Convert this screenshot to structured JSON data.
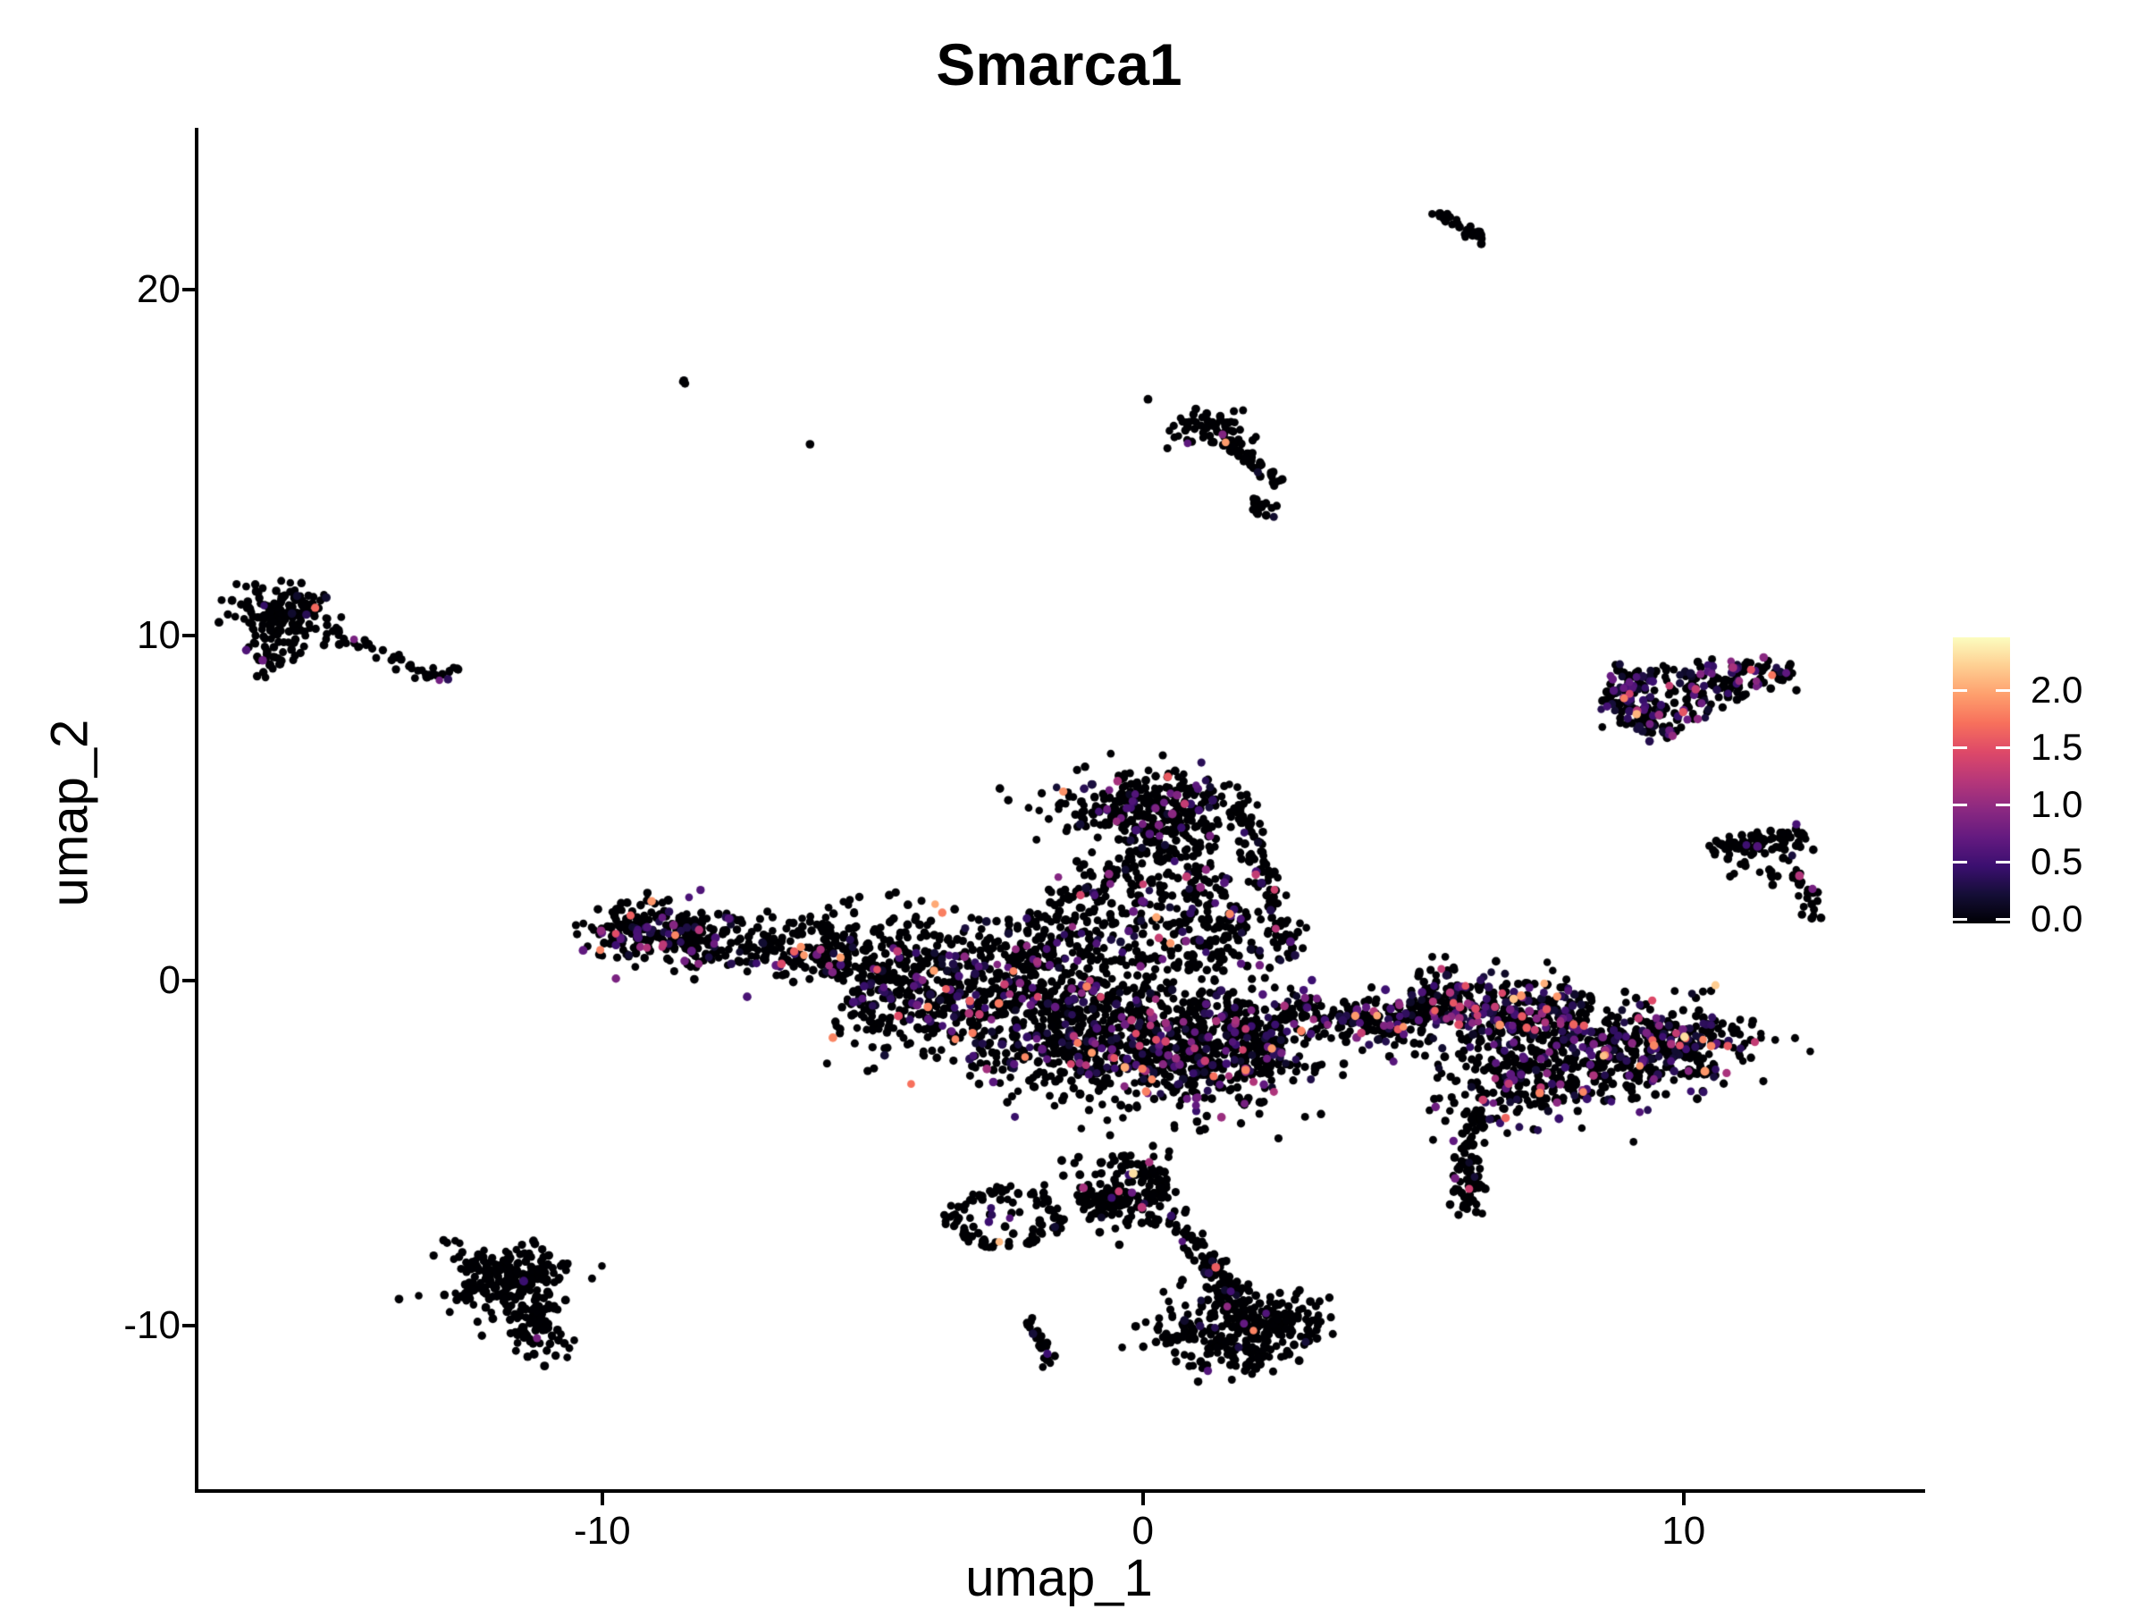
{
  "title": "Smarca1",
  "axes": {
    "x": {
      "label": "umap_1",
      "domain": [
        -17.5,
        14.4
      ],
      "ticks": [
        {
          "value": -10,
          "label": "-10"
        },
        {
          "value": 0,
          "label": "0"
        },
        {
          "value": 10,
          "label": "10"
        }
      ]
    },
    "y": {
      "label": "umap_2",
      "domain": [
        -14.8,
        24.7
      ],
      "ticks": [
        {
          "value": 20,
          "label": "20"
        },
        {
          "value": 10,
          "label": "10"
        },
        {
          "value": 0,
          "label": "0"
        },
        {
          "value": -10,
          "label": "-10"
        }
      ]
    }
  },
  "legend": {
    "min": 0.0,
    "max": 2.46,
    "colormap": "magma",
    "ticks": [
      {
        "value": 2.0,
        "label": "2.0"
      },
      {
        "value": 1.5,
        "label": "1.5"
      },
      {
        "value": 1.0,
        "label": "1.0"
      },
      {
        "value": 0.5,
        "label": "0.5"
      },
      {
        "value": 0.0,
        "label": "0.0"
      }
    ]
  },
  "chart_data": {
    "type": "scatter",
    "title": "Smarca1",
    "xlabel": "umap_1",
    "ylabel": "umap_2",
    "xlim": [
      -17.5,
      14.4
    ],
    "ylim": [
      -14.8,
      24.7
    ],
    "color_variable": "expression",
    "color_range": [
      0.0,
      2.46
    ],
    "point_radius_px": 4.6,
    "colormap_stops": [
      [
        0.0,
        "#000004"
      ],
      [
        0.1,
        "#140e36"
      ],
      [
        0.2,
        "#3b0f70"
      ],
      [
        0.3,
        "#641a80"
      ],
      [
        0.4,
        "#8c2981"
      ],
      [
        0.5,
        "#b73779"
      ],
      [
        0.6,
        "#de4968"
      ],
      [
        0.7,
        "#f7705c"
      ],
      [
        0.8,
        "#fe9f6d"
      ],
      [
        0.9,
        "#fecf92"
      ],
      [
        1.0,
        "#fcfdbf"
      ]
    ],
    "clusters": [
      {
        "name": "streak-top-right",
        "type": "band",
        "x1": 5.48,
        "y1": 22.25,
        "x2": 6.28,
        "y2": 21.42,
        "w": 0.07,
        "n": 30,
        "p0": 0.99,
        "scale": 0.3
      },
      {
        "name": "speck-pair",
        "type": "gauss",
        "cx": -8.5,
        "cy": 17.35,
        "sx": 0.07,
        "sy": 0.05,
        "n": 3,
        "p0": 1.0,
        "scale": 0.3
      },
      {
        "name": "speck",
        "type": "gauss",
        "cx": -6.17,
        "cy": 15.55,
        "sx": 0.03,
        "sy": 0.03,
        "n": 1,
        "p0": 1.0,
        "scale": 0.3
      },
      {
        "name": "top-mid-blob",
        "type": "gauss",
        "cx": 1.25,
        "cy": 16.05,
        "sx": 0.36,
        "sy": 0.26,
        "n": 60,
        "p0": 0.96,
        "scale": 0.4
      },
      {
        "name": "top-mid-chain",
        "type": "band",
        "x1": 1.55,
        "y1": 15.6,
        "x2": 2.6,
        "y2": 14.35,
        "w": 0.09,
        "n": 42,
        "p0": 0.96,
        "scale": 0.4
      },
      {
        "name": "top-mid-hook",
        "type": "gauss",
        "cx": 2.2,
        "cy": 13.72,
        "sx": 0.15,
        "sy": 0.17,
        "n": 15,
        "p0": 0.96,
        "scale": 0.4
      },
      {
        "name": "left-main",
        "type": "gauss",
        "cx": -15.85,
        "cy": 10.7,
        "sx": 0.5,
        "sy": 0.38,
        "n": 130,
        "p0": 0.96,
        "scale": 0.45
      },
      {
        "name": "left-sub",
        "type": "gauss",
        "cx": -16.1,
        "cy": 9.6,
        "sx": 0.27,
        "sy": 0.45,
        "n": 48,
        "p0": 0.96,
        "scale": 0.45
      },
      {
        "name": "left-chain",
        "type": "band",
        "x1": -15.1,
        "y1": 10.15,
        "x2": -13.3,
        "y2": 8.95,
        "w": 0.12,
        "n": 28,
        "p0": 0.96,
        "scale": 0.45
      },
      {
        "name": "left-tip",
        "type": "gauss",
        "cx": -13.15,
        "cy": 8.85,
        "sx": 0.18,
        "sy": 0.12,
        "n": 12,
        "p0": 0.96,
        "scale": 0.45
      },
      {
        "name": "left-pair",
        "type": "gauss",
        "cx": -12.72,
        "cy": 9.0,
        "sx": 0.1,
        "sy": 0.05,
        "n": 5,
        "p0": 0.96,
        "scale": 0.45
      },
      {
        "name": "tri-top",
        "type": "band",
        "x1": 8.6,
        "y1": 8.62,
        "x2": 12.0,
        "y2": 9.0,
        "w": 0.24,
        "n": 135,
        "p0": 0.68,
        "scale": 0.5
      },
      {
        "name": "tri-left",
        "type": "band",
        "x1": 8.55,
        "y1": 8.35,
        "x2": 9.82,
        "y2": 7.05,
        "w": 0.24,
        "n": 95,
        "p0": 0.68,
        "scale": 0.5
      },
      {
        "name": "tri-fill",
        "type": "tri",
        "ax": 8.8,
        "ay": 8.45,
        "bx": 11.8,
        "by": 8.85,
        "cx2": 9.95,
        "cy2": 7.1,
        "n": 70,
        "p0": 0.8,
        "scale": 0.5
      },
      {
        "name": "arrow-band",
        "type": "band",
        "x1": 10.52,
        "y1": 3.82,
        "x2": 12.35,
        "y2": 4.22,
        "w": 0.17,
        "n": 80,
        "p0": 0.97,
        "scale": 0.4
      },
      {
        "name": "arrow-scatter",
        "type": "gauss",
        "cx": 11.3,
        "cy": 3.35,
        "sx": 0.45,
        "sy": 0.28,
        "n": 24,
        "p0": 0.97,
        "scale": 0.4
      },
      {
        "name": "arrow-hook1",
        "type": "band",
        "x1": 11.95,
        "y1": 3.15,
        "x2": 12.32,
        "y2": 2.55,
        "w": 0.1,
        "n": 12,
        "p0": 0.97,
        "scale": 0.4
      },
      {
        "name": "arrow-hook2",
        "type": "band",
        "x1": 12.32,
        "y1": 2.55,
        "x2": 12.38,
        "y2": 1.7,
        "w": 0.1,
        "n": 14,
        "p0": 0.97,
        "scale": 0.4
      },
      {
        "name": "arm-tip",
        "type": "gauss",
        "cx": -9.3,
        "cy": 1.55,
        "sx": 0.48,
        "sy": 0.5,
        "n": 170,
        "p0": 0.8,
        "scale": 0.5
      },
      {
        "name": "arm-band",
        "type": "band",
        "x1": -8.7,
        "y1": 1.3,
        "x2": -5.3,
        "y2": 0.7,
        "w": 0.45,
        "n": 270,
        "p0": 0.86,
        "scale": 0.5
      },
      {
        "name": "arm-bridge",
        "type": "gauss",
        "cx": -4.9,
        "cy": 1.5,
        "sx": 0.9,
        "sy": 0.5,
        "n": 50,
        "p0": 0.9,
        "scale": 0.5
      },
      {
        "name": "main-band",
        "type": "band",
        "x1": -5.3,
        "y1": 0.1,
        "x2": -0.2,
        "y2": -1.35,
        "w": 0.95,
        "n": 900,
        "p0": 0.83,
        "scale": 0.5
      },
      {
        "name": "main-band-2",
        "type": "band",
        "x1": -0.2,
        "y1": -1.35,
        "x2": 2.6,
        "y2": -1.85,
        "w": 0.8,
        "n": 460,
        "p0": 0.8,
        "scale": 0.5
      },
      {
        "name": "main-bulge",
        "type": "gauss",
        "cx": 0.2,
        "cy": -2.45,
        "sx": 1.6,
        "sy": 0.55,
        "n": 300,
        "p0": 0.8,
        "scale": 0.5
      },
      {
        "name": "upper-tri",
        "type": "tri",
        "ax": -2.3,
        "ay": 0.35,
        "bx": 2.4,
        "by": 0.25,
        "cx2": 0.9,
        "cy2": 5.55,
        "n": 430,
        "p0": 0.85,
        "scale": 0.5
      },
      {
        "name": "upper-cap",
        "type": "gauss",
        "cx": 0.15,
        "cy": 5.0,
        "sx": 0.85,
        "sy": 0.55,
        "n": 300,
        "p0": 0.86,
        "scale": 0.5
      },
      {
        "name": "upper-right-edge",
        "type": "band",
        "x1": 1.75,
        "y1": 5.2,
        "x2": 2.75,
        "y2": 0.6,
        "w": 0.16,
        "n": 115,
        "p0": 0.86,
        "scale": 0.5
      },
      {
        "name": "upper-left-edge",
        "type": "band",
        "x1": -2.35,
        "y1": 0.6,
        "x2": -0.7,
        "y2": 3.4,
        "w": 0.3,
        "n": 85,
        "p0": 0.88,
        "scale": 0.5
      },
      {
        "name": "connector",
        "type": "band",
        "x1": 2.6,
        "y1": -0.95,
        "x2": 4.85,
        "y2": -1.2,
        "w": 0.33,
        "n": 175,
        "p0": 0.78,
        "scale": 0.52
      },
      {
        "name": "below-scatter",
        "type": "gauss",
        "cx": 0.5,
        "cy": -3.6,
        "sx": 1.5,
        "sy": 0.5,
        "n": 26,
        "p0": 0.93,
        "scale": 0.4
      },
      {
        "name": "below-scatter2",
        "type": "gauss",
        "cx": 0.0,
        "cy": -4.4,
        "sx": 1.1,
        "sy": 0.4,
        "n": 10,
        "p0": 0.95,
        "scale": 0.4
      },
      {
        "name": "rm-top",
        "type": "band",
        "x1": 4.9,
        "y1": -0.75,
        "x2": 8.2,
        "y2": -1.1,
        "w": 0.55,
        "n": 430,
        "p0": 0.72,
        "scale": 0.52
      },
      {
        "name": "rm-right",
        "type": "gauss",
        "cx": 9.6,
        "cy": -1.85,
        "sx": 0.85,
        "sy": 0.6,
        "n": 310,
        "p0": 0.72,
        "scale": 0.52
      },
      {
        "name": "rm-mid",
        "type": "gauss",
        "cx": 7.3,
        "cy": -3.05,
        "sx": 0.9,
        "sy": 0.55,
        "n": 200,
        "p0": 0.8,
        "scale": 0.5
      },
      {
        "name": "rm-bridge",
        "type": "gauss",
        "cx": 8.3,
        "cy": -2.2,
        "sx": 1.0,
        "sy": 0.55,
        "n": 150,
        "p0": 0.75,
        "scale": 0.5
      },
      {
        "name": "rm-tail",
        "type": "band",
        "x1": 6.15,
        "y1": -3.75,
        "x2": 5.95,
        "y2": -6.8,
        "w": 0.14,
        "n": 95,
        "p0": 0.93,
        "scale": 0.4
      },
      {
        "name": "bottom-left-main",
        "type": "gauss",
        "cx": -11.8,
        "cy": -8.6,
        "sx": 0.58,
        "sy": 0.52,
        "n": 210,
        "p0": 0.985,
        "scale": 0.5
      },
      {
        "name": "bottom-left-ext",
        "type": "gauss",
        "cx": -11.2,
        "cy": -9.9,
        "sx": 0.35,
        "sy": 0.5,
        "n": 95,
        "p0": 0.985,
        "scale": 0.5
      },
      {
        "name": "ring",
        "type": "ring",
        "cx": -2.55,
        "cy": -6.9,
        "rx": 0.95,
        "ry": 0.8,
        "w": 0.09,
        "n": 92,
        "p0": 0.97,
        "scale": 0.4
      },
      {
        "name": "ring-inner",
        "type": "gauss",
        "cx": -2.5,
        "cy": -6.9,
        "sx": 0.45,
        "sy": 0.35,
        "n": 22,
        "p0": 0.85,
        "scale": 0.45
      },
      {
        "name": "ring-right-blob",
        "type": "band",
        "x1": -1.15,
        "y1": -6.6,
        "x2": 0.55,
        "y2": -5.95,
        "w": 0.38,
        "n": 160,
        "p0": 0.94,
        "scale": 0.4
      },
      {
        "name": "ring-upper-scatter",
        "type": "gauss",
        "cx": -0.55,
        "cy": -5.3,
        "sx": 0.45,
        "sy": 0.25,
        "n": 35,
        "p0": 0.94,
        "scale": 0.4
      },
      {
        "name": "chain-down",
        "type": "band",
        "x1": 0.35,
        "y1": -6.75,
        "x2": 1.4,
        "y2": -8.35,
        "w": 0.15,
        "n": 55,
        "p0": 0.95,
        "scale": 0.4
      },
      {
        "name": "bottom-center-neck",
        "type": "band",
        "x1": 1.4,
        "y1": -8.45,
        "x2": 1.6,
        "y2": -9.5,
        "w": 0.2,
        "n": 55,
        "p0": 0.95,
        "scale": 0.4
      },
      {
        "name": "bottom-center-main",
        "type": "gauss",
        "cx": 1.65,
        "cy": -10.2,
        "sx": 0.68,
        "sy": 0.55,
        "n": 270,
        "p0": 0.96,
        "scale": 0.45
      },
      {
        "name": "bottom-center-right",
        "type": "gauss",
        "cx": 2.6,
        "cy": -9.85,
        "sx": 0.35,
        "sy": 0.3,
        "n": 50,
        "p0": 0.96,
        "scale": 0.45
      },
      {
        "name": "streak-bottom",
        "type": "band",
        "x1": -2.1,
        "y1": -9.7,
        "x2": -1.72,
        "y2": -11.2,
        "w": 0.08,
        "n": 26,
        "p0": 0.88,
        "scale": 0.45
      }
    ],
    "extra_points": [
      [
        -0.18,
        -5.6,
        2.3
      ],
      [
        -9.75,
        1.35,
        1.5
      ],
      [
        6.6,
        -1.3,
        1.9
      ],
      [
        1.9,
        -2.6,
        1.8
      ],
      [
        -3.2,
        -0.6,
        1.6
      ],
      [
        9.0,
        8.3,
        1.4
      ]
    ]
  }
}
